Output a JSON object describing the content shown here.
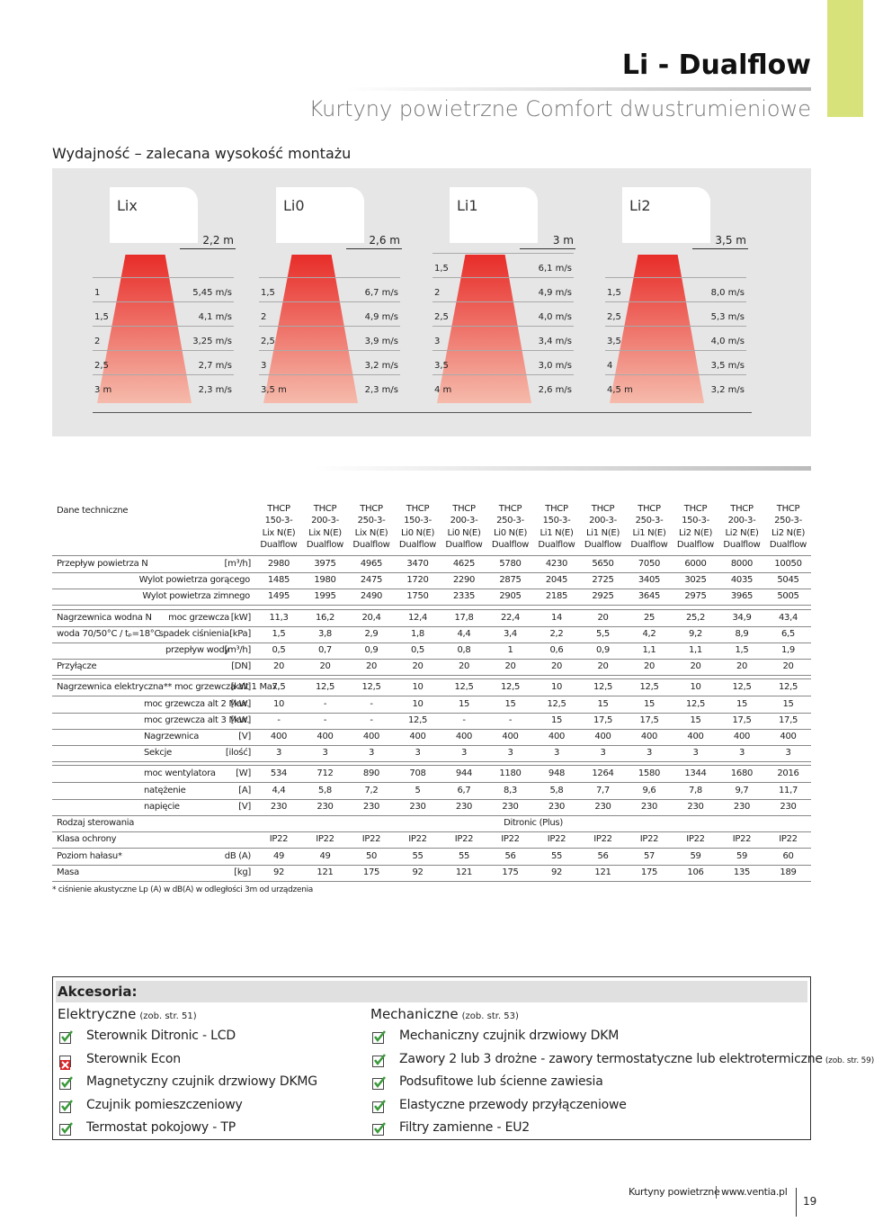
{
  "header": {
    "title": "Li - Dualflow",
    "subtitle": "Kurtyny powietrzne Comfort dwustrumieniowe"
  },
  "performance": {
    "title": "Wydajność – zalecana wysokość montażu",
    "panels": [
      {
        "name": "Lix",
        "height": "2,2 m",
        "rows": [
          [
            "1",
            "5,45 m/s"
          ],
          [
            "1,5",
            "4,1 m/s"
          ],
          [
            "2",
            "3,25 m/s"
          ],
          [
            "2,5",
            "2,7 m/s"
          ],
          [
            "3 m",
            "2,3 m/s"
          ]
        ]
      },
      {
        "name": "Li0",
        "height": "2,6 m",
        "rows": [
          [
            "1,5",
            "6,7 m/s"
          ],
          [
            "2",
            "4,9 m/s"
          ],
          [
            "2,5",
            "3,9 m/s"
          ],
          [
            "3",
            "3,2 m/s"
          ],
          [
            "3,5 m",
            "2,3 m/s"
          ]
        ]
      },
      {
        "name": "Li1",
        "height": "3 m",
        "rows": [
          [
            "1,5",
            "6,1 m/s"
          ],
          [
            "2",
            "4,9 m/s"
          ],
          [
            "2,5",
            "4,0 m/s"
          ],
          [
            "3",
            "3,4 m/s"
          ],
          [
            "3,5",
            "3,0 m/s"
          ],
          [
            "4 m",
            "2,6 m/s"
          ]
        ]
      },
      {
        "name": "Li2",
        "height": "3,5 m",
        "rows": [
          [
            "1,5",
            "8,0 m/s"
          ],
          [
            "2,5",
            "5,3 m/s"
          ],
          [
            "3,5",
            "4,0 m/s"
          ],
          [
            "4",
            "3,5 m/s"
          ],
          [
            "4,5 m",
            "3,2 m/s"
          ]
        ]
      }
    ]
  },
  "tech": {
    "title": "Dane techniczne",
    "columns": [
      [
        "THCP",
        "150-3-",
        "Lix N(E)",
        "Dualflow"
      ],
      [
        "THCP",
        "200-3-",
        "Lix N(E)",
        "Dualflow"
      ],
      [
        "THCP",
        "250-3-",
        "Lix N(E)",
        "Dualflow"
      ],
      [
        "THCP",
        "150-3-",
        "Li0 N(E)",
        "Dualflow"
      ],
      [
        "THCP",
        "200-3-",
        "Li0 N(E)",
        "Dualflow"
      ],
      [
        "THCP",
        "250-3-",
        "Li0 N(E)",
        "Dualflow"
      ],
      [
        "THCP",
        "150-3-",
        "Li1 N(E)",
        "Dualflow"
      ],
      [
        "THCP",
        "200-3-",
        "Li1 N(E)",
        "Dualflow"
      ],
      [
        "THCP",
        "250-3-",
        "Li1 N(E)",
        "Dualflow"
      ],
      [
        "THCP",
        "150-3-",
        "Li2 N(E)",
        "Dualflow"
      ],
      [
        "THCP",
        "200-3-",
        "Li2 N(E)",
        "Dualflow"
      ],
      [
        "THCP",
        "250-3-",
        "Li2 N(E)",
        "Dualflow"
      ]
    ],
    "rows": [
      {
        "label": "Przepływ powietrza N",
        "unit": "[m³/h]",
        "values": [
          "2980",
          "3975",
          "4965",
          "3470",
          "4625",
          "5780",
          "4230",
          "5650",
          "7050",
          "6000",
          "8000",
          "10050"
        ]
      },
      {
        "sub": "Wylot powietrza gorącego",
        "values": [
          "1485",
          "1980",
          "2475",
          "1720",
          "2290",
          "2875",
          "2045",
          "2725",
          "3405",
          "3025",
          "4035",
          "5045"
        ]
      },
      {
        "sub": "Wylot powietrza zimnego",
        "values": [
          "1495",
          "1995",
          "2490",
          "1750",
          "2335",
          "2905",
          "2185",
          "2925",
          "3645",
          "2975",
          "3965",
          "5005"
        ]
      },
      {
        "label": "Nagrzewnica wodna N",
        "sub": "moc grzewcza",
        "unit": "[kW]",
        "values": [
          "11,3",
          "16,2",
          "20,4",
          "12,4",
          "17,8",
          "22,4",
          "14",
          "20",
          "25",
          "25,2",
          "34,9",
          "43,4"
        ]
      },
      {
        "label": "woda 70/50°C / tₚ=18°C",
        "sub": "spadek ciśnienia",
        "unit": "[kPa]",
        "values": [
          "1,5",
          "3,8",
          "2,9",
          "1,8",
          "4,4",
          "3,4",
          "2,2",
          "5,5",
          "4,2",
          "9,2",
          "8,9",
          "6,5"
        ]
      },
      {
        "sub": "przepływ wody",
        "unit": "[m³/h]",
        "values": [
          "0,5",
          "0,7",
          "0,9",
          "0,5",
          "0,8",
          "1",
          "0,6",
          "0,9",
          "1,1",
          "1,1",
          "1,5",
          "1,9"
        ]
      },
      {
        "label": "Przyłącze",
        "unit": "[DN]",
        "values": [
          "20",
          "20",
          "20",
          "20",
          "20",
          "20",
          "20",
          "20",
          "20",
          "20",
          "20",
          "20"
        ]
      },
      {
        "label": "Nagrzewnica elektryczna** moc grzewcza alt 1 Max.",
        "unit": "[kW]",
        "values": [
          "7,5",
          "12,5",
          "12,5",
          "10",
          "12,5",
          "12,5",
          "10",
          "12,5",
          "12,5",
          "10",
          "12,5",
          "12,5"
        ]
      },
      {
        "sub": "moc grzewcza alt 2 Max.",
        "unit": "[kW]",
        "values": [
          "10",
          "-",
          "-",
          "10",
          "15",
          "15",
          "12,5",
          "15",
          "15",
          "12,5",
          "15",
          "15"
        ]
      },
      {
        "sub": "moc grzewcza alt 3 Max.",
        "unit": "[kW]",
        "values": [
          "-",
          "-",
          "-",
          "12,5",
          "-",
          "-",
          "15",
          "17,5",
          "17,5",
          "15",
          "17,5",
          "17,5"
        ]
      },
      {
        "sub": "Nagrzewnica",
        "unit": "[V]",
        "values": [
          "400",
          "400",
          "400",
          "400",
          "400",
          "400",
          "400",
          "400",
          "400",
          "400",
          "400",
          "400"
        ]
      },
      {
        "sub": "Sekcje",
        "unit": "[ilość]",
        "values": [
          "3",
          "3",
          "3",
          "3",
          "3",
          "3",
          "3",
          "3",
          "3",
          "3",
          "3",
          "3"
        ]
      },
      {
        "sub": "moc wentylatora",
        "unit": "[W]",
        "values": [
          "534",
          "712",
          "890",
          "708",
          "944",
          "1180",
          "948",
          "1264",
          "1580",
          "1344",
          "1680",
          "2016"
        ]
      },
      {
        "sub": "natężenie",
        "unit": "[A]",
        "values": [
          "4,4",
          "5,8",
          "7,2",
          "5",
          "6,7",
          "8,3",
          "5,8",
          "7,7",
          "9,6",
          "7,8",
          "9,7",
          "11,7"
        ]
      },
      {
        "sub": "napięcie",
        "unit": "[V]",
        "values": [
          "230",
          "230",
          "230",
          "230",
          "230",
          "230",
          "230",
          "230",
          "230",
          "230",
          "230",
          "230"
        ]
      },
      {
        "label": "Rodzaj sterowania",
        "span": "Ditronic (Plus)"
      },
      {
        "label": "Klasa ochrony",
        "values": [
          "IP22",
          "IP22",
          "IP22",
          "IP22",
          "IP22",
          "IP22",
          "IP22",
          "IP22",
          "IP22",
          "IP22",
          "IP22",
          "IP22"
        ]
      },
      {
        "label": "Poziom hałasu*",
        "unit": "dB (A)",
        "values": [
          "49",
          "49",
          "50",
          "55",
          "55",
          "56",
          "55",
          "56",
          "57",
          "59",
          "59",
          "60"
        ]
      },
      {
        "label": "Masa",
        "unit": "[kg]",
        "values": [
          "92",
          "121",
          "175",
          "92",
          "121",
          "175",
          "92",
          "121",
          "175",
          "106",
          "135",
          "189"
        ]
      }
    ],
    "footnote": "* ciśnienie akustyczne Lp (A) w dB(A) w odległości 3m od urządzenia"
  },
  "accessories": {
    "title": "Akcesoria:",
    "groups": [
      {
        "name": "Elektryczne",
        "note": "(zob. str. 51)",
        "items": [
          {
            "text": "Sterownik Ditronic - LCD",
            "icon": "check"
          },
          {
            "text": "Sterownik Econ",
            "icon": "cross"
          },
          {
            "text": "Magnetyczny czujnik drzwiowy DKMG",
            "icon": "check"
          },
          {
            "text": "Czujnik pomieszczeniowy",
            "icon": "check"
          },
          {
            "text": "Termostat pokojowy - TP",
            "icon": "check"
          }
        ]
      },
      {
        "name": "Mechaniczne",
        "note": "(zob. str. 53)",
        "items": [
          {
            "text": "Mechaniczny czujnik drzwiowy DKM",
            "icon": "check"
          },
          {
            "text": "Zawory 2 lub 3 drożne - zawory termostatyczne lub elektrotermiczne",
            "note": "(zob. str. 59)",
            "icon": "check"
          },
          {
            "text": "Podsufitowe lub ścienne zawiesia",
            "icon": "check"
          },
          {
            "text": "Elastyczne przewody przyłączeniowe",
            "icon": "check"
          },
          {
            "text": "Filtry zamienne - EU2",
            "icon": "check"
          }
        ]
      }
    ]
  },
  "footer": {
    "section": "Kurtyny powietrzne",
    "url": "www.ventia.pl",
    "page": "19"
  }
}
